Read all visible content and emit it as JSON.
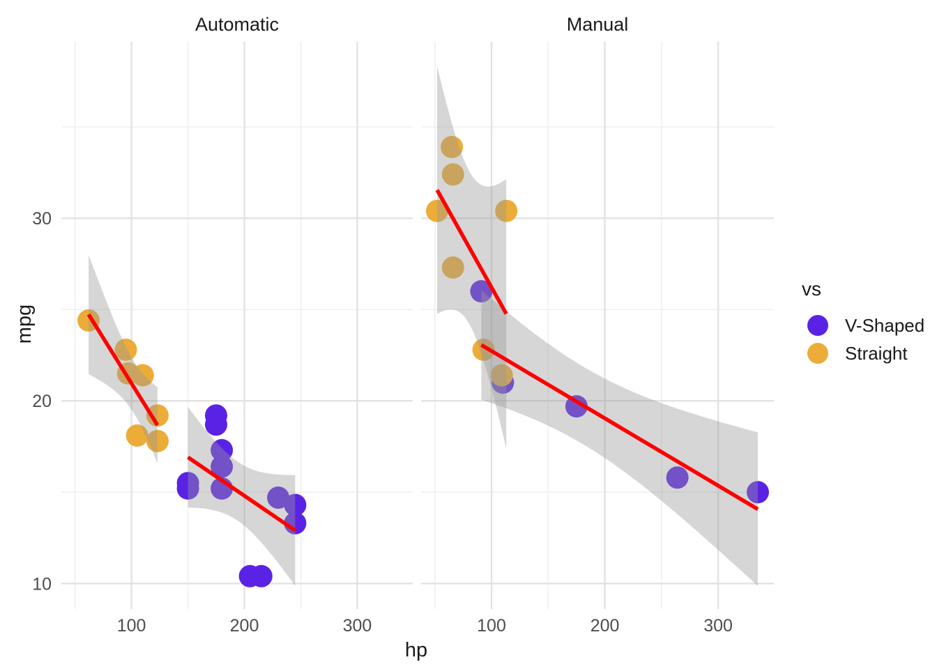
{
  "chart_data": {
    "type": "scatter",
    "title": "",
    "xlabel": "hp",
    "ylabel": "mpg",
    "facets": [
      {
        "label": "Automatic",
        "points": [
          [
            110,
            21.4,
            "S"
          ],
          [
            175,
            18.7,
            "V"
          ],
          [
            105,
            18.1,
            "S"
          ],
          [
            245,
            14.3,
            "V"
          ],
          [
            62,
            24.4,
            "S"
          ],
          [
            95,
            22.8,
            "S"
          ],
          [
            123,
            19.2,
            "S"
          ],
          [
            123,
            17.8,
            "S"
          ],
          [
            180,
            16.4,
            "V"
          ],
          [
            180,
            17.3,
            "V"
          ],
          [
            180,
            15.2,
            "V"
          ],
          [
            205,
            10.4,
            "V"
          ],
          [
            215,
            10.4,
            "V"
          ],
          [
            230,
            14.7,
            "V"
          ],
          [
            97,
            21.5,
            "S"
          ],
          [
            150,
            15.5,
            "V"
          ],
          [
            150,
            15.2,
            "V"
          ],
          [
            245,
            13.3,
            "V"
          ],
          [
            175,
            19.2,
            "V"
          ]
        ]
      },
      {
        "label": "Manual",
        "points": [
          [
            110,
            21.0,
            "V"
          ],
          [
            110,
            21.0,
            "V"
          ],
          [
            93,
            22.8,
            "S"
          ],
          [
            66,
            32.4,
            "S"
          ],
          [
            52,
            30.4,
            "S"
          ],
          [
            65,
            33.9,
            "S"
          ],
          [
            66,
            27.3,
            "S"
          ],
          [
            91,
            26.0,
            "V"
          ],
          [
            113,
            30.4,
            "S"
          ],
          [
            264,
            15.8,
            "V"
          ],
          [
            175,
            19.7,
            "V"
          ],
          [
            335,
            15.0,
            "V"
          ],
          [
            109,
            21.4,
            "S"
          ]
        ]
      }
    ],
    "series": [
      {
        "key": "V",
        "label": "V-Shaped",
        "color": "#5A22E5"
      },
      {
        "key": "S",
        "label": "Straight",
        "color": "#ECAC38"
      }
    ],
    "legend": {
      "title": "vs",
      "position": "right"
    },
    "axes": {
      "x": {
        "major_ticks": [
          100,
          200,
          300
        ],
        "minor_ticks": [
          50,
          150,
          250
        ],
        "domain": [
          37.85,
          349.15
        ]
      },
      "y": {
        "major_ticks": [
          10,
          20,
          30
        ],
        "minor_ticks": [
          15,
          25,
          35
        ],
        "domain": [
          8.6,
          39.66
        ]
      }
    },
    "smooth": {
      "method": "lm",
      "ci_level": 0.95,
      "line_color": "#FF0000",
      "band_color": "#999999",
      "band_opacity": 0.4
    },
    "grid": true,
    "theme": {
      "background": "#FFFFFF",
      "grid_major": "#E2E2E2",
      "grid_minor": "#EFEFEF",
      "tick_label_color": "#4D4D4D",
      "text_color": "#1A1A1A"
    }
  }
}
